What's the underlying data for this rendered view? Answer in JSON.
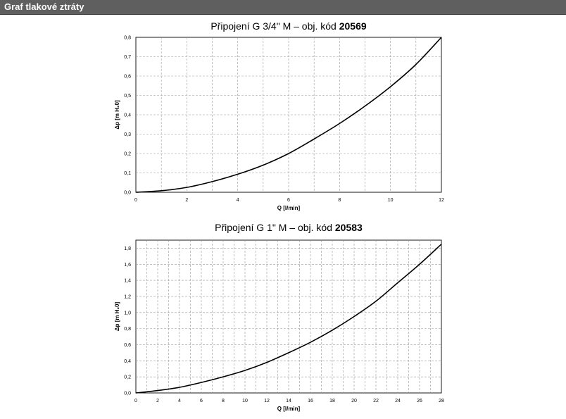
{
  "header": {
    "title": "Graf tlakové ztráty"
  },
  "chart_data": [
    {
      "type": "line",
      "title": "Připojení G 3/4\" M – obj. kód ",
      "title_code": "20569",
      "xlabel": "Q [l/min]",
      "ylabel": "Δp [m H₂0]",
      "xlim": [
        0,
        12
      ],
      "ylim": [
        0,
        0.8
      ],
      "xticks": [
        0,
        2,
        4,
        6,
        8,
        10,
        12
      ],
      "xtick_labels": [
        "0",
        "2",
        "4",
        "6",
        "8",
        "10",
        "12"
      ],
      "yticks": [
        0,
        0.1,
        0.2,
        0.3,
        0.4,
        0.5,
        0.6,
        0.7,
        0.8
      ],
      "ytick_labels": [
        "0,0",
        "0,1",
        "0,2",
        "0,3",
        "0,4",
        "0,5",
        "0,6",
        "0,7",
        "0,8"
      ],
      "x_minor_step": 1,
      "grid": true,
      "series": [
        {
          "x": [
            0,
            1,
            2,
            3,
            4,
            5,
            6,
            7,
            8,
            9,
            10,
            11,
            12
          ],
          "y": [
            0,
            0.008,
            0.025,
            0.055,
            0.093,
            0.14,
            0.2,
            0.275,
            0.355,
            0.445,
            0.545,
            0.66,
            0.8
          ]
        }
      ]
    },
    {
      "type": "line",
      "title": "Připojení G 1\" M – obj. kód ",
      "title_code": "20583",
      "xlabel": "Q [l/min]",
      "ylabel": "Δp [m H₂0]",
      "xlim": [
        0,
        28
      ],
      "ylim": [
        0,
        1.9
      ],
      "xticks": [
        0,
        2,
        4,
        6,
        8,
        10,
        12,
        14,
        16,
        18,
        20,
        22,
        24,
        26,
        28
      ],
      "xtick_labels": [
        "0",
        "2",
        "4",
        "6",
        "8",
        "10",
        "12",
        "14",
        "16",
        "18",
        "20",
        "22",
        "24",
        "26",
        "28"
      ],
      "yticks": [
        0,
        0.2,
        0.4,
        0.6,
        0.8,
        1.0,
        1.2,
        1.4,
        1.6,
        1.8
      ],
      "ytick_labels": [
        "0,0",
        "0,2",
        "0,4",
        "0,6",
        "0,8",
        "1,0",
        "1,2",
        "1,4",
        "1,6",
        "1,8"
      ],
      "x_minor_step": 1,
      "grid": true,
      "series": [
        {
          "x": [
            0,
            2,
            4,
            6,
            8,
            10,
            12,
            14,
            16,
            18,
            20,
            22,
            24,
            26,
            28
          ],
          "y": [
            0,
            0.03,
            0.07,
            0.13,
            0.2,
            0.28,
            0.38,
            0.5,
            0.63,
            0.78,
            0.95,
            1.14,
            1.37,
            1.6,
            1.85
          ]
        }
      ]
    }
  ]
}
